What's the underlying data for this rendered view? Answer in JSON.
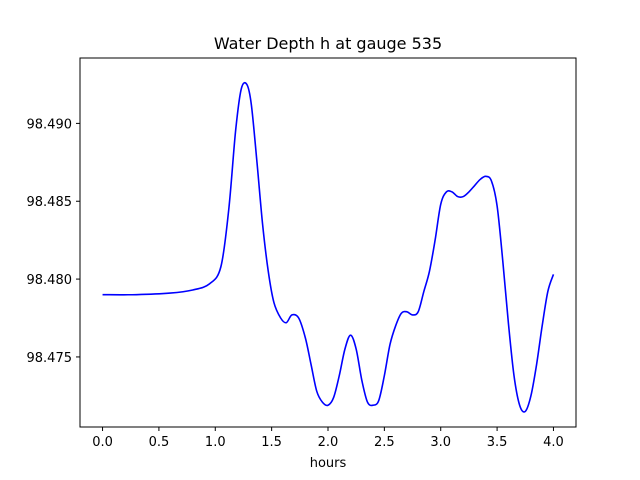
{
  "chart_data": {
    "type": "line",
    "title": "Water Depth h at gauge 535",
    "xlabel": "hours",
    "ylabel": "",
    "xlim": [
      -0.2,
      4.2
    ],
    "ylim": [
      98.4705,
      98.4942
    ],
    "xticks": [
      0.0,
      0.5,
      1.0,
      1.5,
      2.0,
      2.5,
      3.0,
      3.5,
      4.0
    ],
    "xtick_labels": [
      "0.0",
      "0.5",
      "1.0",
      "1.5",
      "2.0",
      "2.5",
      "3.0",
      "3.5",
      "4.0"
    ],
    "yticks": [
      98.475,
      98.48,
      98.485,
      98.49
    ],
    "ytick_labels": [
      "98.475",
      "98.480",
      "98.485",
      "98.490"
    ],
    "grid": false,
    "series": [
      {
        "color": "#0000ff",
        "x": [
          0.0,
          0.3,
          0.6,
          0.8,
          0.95,
          1.05,
          1.12,
          1.18,
          1.23,
          1.28,
          1.32,
          1.37,
          1.42,
          1.47,
          1.52,
          1.58,
          1.63,
          1.68,
          1.74,
          1.8,
          1.85,
          1.9,
          1.95,
          2.0,
          2.05,
          2.1,
          2.15,
          2.2,
          2.25,
          2.3,
          2.35,
          2.4,
          2.45,
          2.5,
          2.55,
          2.6,
          2.65,
          2.7,
          2.75,
          2.8,
          2.85,
          2.9,
          2.95,
          3.0,
          3.05,
          3.1,
          3.15,
          3.2,
          3.25,
          3.3,
          3.35,
          3.4,
          3.45,
          3.5,
          3.55,
          3.6,
          3.65,
          3.7,
          3.75,
          3.8,
          3.85,
          3.9,
          3.95,
          4.0
        ],
        "y": [
          98.479,
          98.479,
          98.4791,
          98.4793,
          98.4797,
          98.4808,
          98.4845,
          98.4895,
          98.4922,
          98.4925,
          98.4912,
          98.4875,
          98.4835,
          98.4805,
          98.4785,
          98.4775,
          98.4772,
          98.4777,
          98.4775,
          98.4762,
          98.4745,
          98.4728,
          98.4721,
          98.4719,
          98.4724,
          98.4738,
          98.4755,
          98.4764,
          98.4755,
          98.4735,
          98.4721,
          98.4719,
          98.4722,
          98.4738,
          98.4758,
          98.477,
          98.4778,
          98.4779,
          98.4777,
          98.4779,
          98.4792,
          98.4805,
          98.4825,
          98.4848,
          98.4856,
          98.4856,
          98.4853,
          98.4853,
          98.4856,
          98.486,
          98.4864,
          98.4866,
          98.4863,
          98.4847,
          98.4812,
          98.4772,
          98.4738,
          98.4719,
          98.4715,
          98.4725,
          98.4745,
          98.477,
          98.4792,
          98.4803
        ]
      }
    ]
  }
}
